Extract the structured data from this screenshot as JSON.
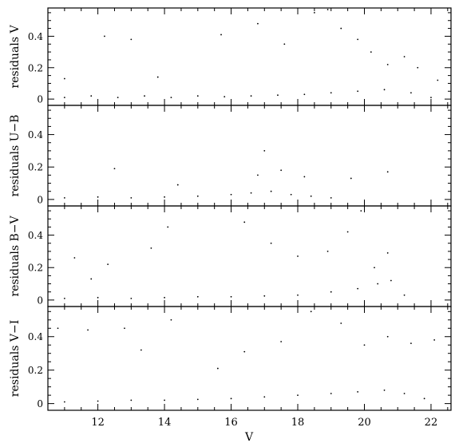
{
  "chart_data": {
    "type": "scatter",
    "xlabel": "V",
    "xlim": [
      10.5,
      22.6
    ],
    "xticks": [
      12,
      14,
      16,
      18,
      20,
      22
    ],
    "panels": [
      {
        "name": "residuals-v",
        "ylabel": "residuals V",
        "ylim": [
          -0.04,
          0.58
        ],
        "yticks": [
          0,
          0.2,
          0.4
        ],
        "base_points": [
          [
            11.0,
            0.01
          ],
          [
            11.8,
            0.02
          ],
          [
            12.6,
            0.01
          ],
          [
            13.4,
            0.02
          ],
          [
            14.2,
            0.01
          ],
          [
            15.0,
            0.02
          ],
          [
            15.8,
            0.015
          ],
          [
            16.6,
            0.02
          ],
          [
            17.4,
            0.025
          ],
          [
            18.2,
            0.03
          ],
          [
            19.0,
            0.04
          ],
          [
            19.8,
            0.05
          ],
          [
            20.6,
            0.06
          ],
          [
            21.4,
            0.04
          ],
          [
            22.0,
            0.01
          ]
        ],
        "outliers": [
          [
            11.0,
            0.13
          ],
          [
            12.2,
            0.4
          ],
          [
            13.0,
            0.38
          ],
          [
            13.8,
            0.14
          ],
          [
            15.7,
            0.41
          ],
          [
            16.8,
            0.48
          ],
          [
            17.6,
            0.35
          ],
          [
            18.5,
            0.55
          ],
          [
            18.9,
            0.57
          ],
          [
            19.3,
            0.45
          ],
          [
            19.8,
            0.38
          ],
          [
            20.2,
            0.3
          ],
          [
            20.7,
            0.22
          ],
          [
            21.2,
            0.27
          ],
          [
            21.6,
            0.2
          ],
          [
            22.2,
            0.12
          ]
        ]
      },
      {
        "name": "residuals-u-b",
        "ylabel": "residuals U−B",
        "ylim": [
          -0.04,
          0.58
        ],
        "yticks": [
          0,
          0.2,
          0.4
        ],
        "base_points": [
          [
            11.0,
            0.01
          ],
          [
            12.0,
            0.015
          ],
          [
            13.0,
            0.01
          ],
          [
            14.0,
            0.015
          ],
          [
            15.0,
            0.02
          ],
          [
            16.0,
            0.03
          ],
          [
            16.6,
            0.04
          ],
          [
            17.2,
            0.05
          ],
          [
            17.8,
            0.03
          ],
          [
            18.4,
            0.02
          ],
          [
            19.0,
            0.01
          ]
        ],
        "outliers": [
          [
            12.5,
            0.19
          ],
          [
            14.4,
            0.09
          ],
          [
            16.8,
            0.15
          ],
          [
            17.0,
            0.3
          ],
          [
            17.5,
            0.18
          ],
          [
            18.2,
            0.14
          ],
          [
            19.6,
            0.13
          ],
          [
            20.7,
            0.17
          ]
        ]
      },
      {
        "name": "residuals-b-v",
        "ylabel": "residuals B−V",
        "ylim": [
          -0.04,
          0.58
        ],
        "yticks": [
          0,
          0.2,
          0.4
        ],
        "base_points": [
          [
            11.0,
            0.01
          ],
          [
            12.0,
            0.015
          ],
          [
            13.0,
            0.01
          ],
          [
            14.0,
            0.015
          ],
          [
            15.0,
            0.02
          ],
          [
            16.0,
            0.02
          ],
          [
            17.0,
            0.025
          ],
          [
            18.0,
            0.03
          ],
          [
            19.0,
            0.05
          ],
          [
            19.8,
            0.07
          ],
          [
            20.4,
            0.1
          ],
          [
            20.8,
            0.12
          ],
          [
            21.2,
            0.03
          ]
        ],
        "outliers": [
          [
            11.3,
            0.26
          ],
          [
            11.8,
            0.13
          ],
          [
            12.3,
            0.22
          ],
          [
            13.6,
            0.32
          ],
          [
            14.1,
            0.45
          ],
          [
            16.4,
            0.48
          ],
          [
            17.2,
            0.35
          ],
          [
            18.0,
            0.27
          ],
          [
            18.9,
            0.3
          ],
          [
            19.5,
            0.42
          ],
          [
            19.9,
            0.55
          ],
          [
            20.3,
            0.2
          ],
          [
            20.7,
            0.29
          ]
        ]
      },
      {
        "name": "residuals-v-i",
        "ylabel": "residuals V−I",
        "ylim": [
          -0.04,
          0.58
        ],
        "yticks": [
          0,
          0.2,
          0.4
        ],
        "base_points": [
          [
            11.0,
            0.01
          ],
          [
            12.0,
            0.015
          ],
          [
            13.0,
            0.02
          ],
          [
            14.0,
            0.02
          ],
          [
            15.0,
            0.025
          ],
          [
            16.0,
            0.03
          ],
          [
            17.0,
            0.04
          ],
          [
            18.0,
            0.05
          ],
          [
            19.0,
            0.06
          ],
          [
            19.8,
            0.07
          ],
          [
            20.6,
            0.08
          ],
          [
            21.2,
            0.06
          ],
          [
            21.8,
            0.03
          ]
        ],
        "outliers": [
          [
            10.8,
            0.45
          ],
          [
            11.7,
            0.44
          ],
          [
            12.8,
            0.45
          ],
          [
            13.3,
            0.32
          ],
          [
            14.2,
            0.5
          ],
          [
            15.6,
            0.21
          ],
          [
            16.4,
            0.31
          ],
          [
            17.5,
            0.37
          ],
          [
            18.4,
            0.55
          ],
          [
            19.3,
            0.48
          ],
          [
            20.0,
            0.35
          ],
          [
            20.7,
            0.4
          ],
          [
            21.4,
            0.36
          ],
          [
            22.1,
            0.38
          ]
        ]
      }
    ]
  }
}
